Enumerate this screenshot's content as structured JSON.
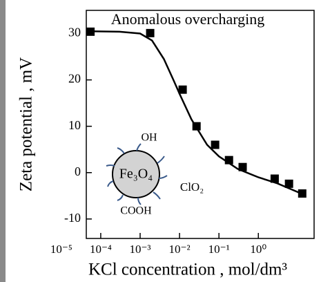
{
  "chart_data": {
    "type": "scatter",
    "title": "Anomalous overcharging",
    "x_label": "KCl concentration , mol/dm³",
    "y_label": "Zeta potential , mV",
    "x_log": true,
    "xlim": [
      4.3e-05,
      26
    ],
    "ylim": [
      -14.2,
      35
    ],
    "xticks": [
      {
        "value": 1e-05,
        "label": "10⁻⁵"
      },
      {
        "value": 0.0001,
        "label": "10⁻⁴"
      },
      {
        "value": 0.001,
        "label": "10⁻³"
      },
      {
        "value": 0.01,
        "label": "10⁻²"
      },
      {
        "value": 0.1,
        "label": "10⁻¹"
      },
      {
        "value": 1,
        "label": "10⁰"
      }
    ],
    "yticks": [
      -10,
      0,
      10,
      20,
      30
    ],
    "series": [
      {
        "marker": "square",
        "color": "#000000",
        "x": [
          5.5e-05,
          0.0018,
          0.012,
          0.027,
          0.08,
          0.18,
          0.4,
          2.6,
          6,
          13
        ],
        "values": [
          30.4,
          30.1,
          17.9,
          10,
          6,
          2.7,
          1.2,
          -1.3,
          -2.4,
          -4.5
        ]
      },
      {
        "marker": "line",
        "color": "#000000",
        "x": [
          5.5e-05,
          0.0003,
          0.001,
          0.002,
          0.004,
          0.007,
          0.01,
          0.02,
          0.05,
          0.1,
          0.3,
          1,
          3,
          13
        ],
        "values": [
          30.5,
          30.4,
          30,
          28.5,
          24.5,
          20,
          17,
          11.5,
          6,
          3.5,
          0.8,
          -1,
          -2.3,
          -4.6
        ]
      }
    ],
    "annotations": [
      "OH",
      "Fe₃O₄",
      "ClO₂",
      "COOH"
    ]
  }
}
